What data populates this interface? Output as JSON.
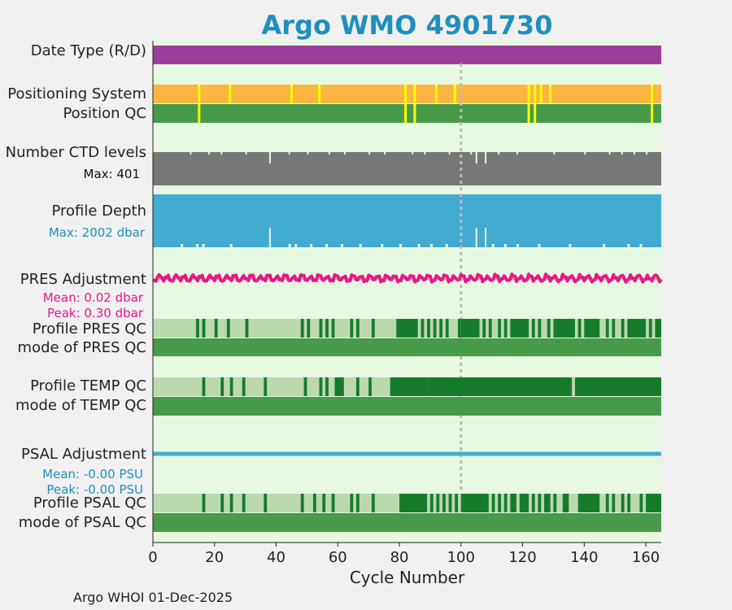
{
  "chart_data": {
    "type": "timeline-qc",
    "title": "Argo WMO 4901730",
    "xlabel": "Cycle Number",
    "xlim": [
      0,
      165
    ],
    "xticks": [
      0,
      20,
      40,
      60,
      80,
      100,
      120,
      140,
      160
    ],
    "reference_cycle": 100,
    "colors": {
      "plot_bg": "#e6f8e0",
      "date_type": "#9b3c98",
      "positioning": "#fbb540",
      "flag_yellow": "#ffff00",
      "qc_good": "#479a48",
      "qc_dark": "#167c2c",
      "qc_light": "#bcd9ae",
      "ctd": "#777777",
      "depth": "#43abd0",
      "pres_adj": "#e8168e",
      "pres_ref": "#ffcc00",
      "psal_adj": "#43abd0",
      "psal_text": "#1e8fbf",
      "ref_line": "#bbbbbb"
    },
    "rows": {
      "date_type": {
        "label": "Date Type (R/D)"
      },
      "positioning_system": {
        "label": "Positioning System",
        "flag_cycles": [
          15,
          25,
          45,
          54,
          82,
          85,
          92,
          98,
          122,
          124,
          126,
          129,
          162
        ]
      },
      "position_qc": {
        "label": "Position QC",
        "flag_cycles": [
          15,
          82,
          85,
          122,
          124,
          162
        ]
      },
      "ctd_levels": {
        "label": "Number CTD levels",
        "max_text": "Max: 401",
        "max": 401,
        "dip_cycles": [
          38,
          105,
          108
        ]
      },
      "profile_depth": {
        "label": "Profile Depth",
        "max_text": "Max: 2002 dbar",
        "max": 2002,
        "dip_cycles": [
          38,
          105,
          108
        ]
      },
      "pres_adjustment": {
        "label": "PRES Adjustment",
        "mean_text": "Mean: 0.02 dbar",
        "peak_text": "Peak: 0.30 dbar",
        "mean": 0.02,
        "peak": 0.3
      },
      "profile_pres_qc": {
        "label": "Profile PRES QC",
        "dark_segments": [
          [
            14,
            15
          ],
          [
            16,
            17
          ],
          [
            20,
            21
          ],
          [
            24,
            25
          ],
          [
            30,
            31
          ],
          [
            48,
            49
          ],
          [
            50,
            51
          ],
          [
            54,
            55
          ],
          [
            56,
            57
          ],
          [
            58,
            59
          ],
          [
            64,
            65
          ],
          [
            66,
            67
          ],
          [
            71,
            72
          ],
          [
            79,
            80
          ],
          [
            80,
            86
          ],
          [
            87,
            88
          ],
          [
            89,
            90
          ],
          [
            91,
            92
          ],
          [
            93,
            94
          ],
          [
            95,
            96
          ],
          [
            99,
            100
          ],
          [
            100,
            106
          ],
          [
            107,
            108
          ],
          [
            109,
            110
          ],
          [
            112,
            113
          ],
          [
            114,
            115
          ],
          [
            116,
            122
          ],
          [
            123,
            124
          ],
          [
            125,
            126
          ],
          [
            128,
            129
          ],
          [
            130,
            137
          ],
          [
            138,
            139
          ],
          [
            140,
            145
          ],
          [
            147,
            148
          ],
          [
            149,
            150
          ],
          [
            152,
            153
          ],
          [
            154,
            160
          ],
          [
            161,
            162
          ],
          [
            163,
            165
          ]
        ]
      },
      "mode_pres_qc": {
        "label": "mode of PRES QC"
      },
      "profile_temp_qc": {
        "label": "Profile TEMP QC",
        "dark_segments": [
          [
            16,
            17
          ],
          [
            22,
            23
          ],
          [
            25,
            26
          ],
          [
            29,
            30
          ],
          [
            36,
            37
          ],
          [
            49,
            50
          ],
          [
            54,
            55
          ],
          [
            56,
            57
          ],
          [
            59,
            62
          ],
          [
            66,
            67
          ],
          [
            70,
            71
          ],
          [
            77,
            89
          ],
          [
            89,
            90
          ],
          [
            90,
            136
          ],
          [
            137,
            165
          ]
        ]
      },
      "mode_temp_qc": {
        "label": "mode of TEMP QC"
      },
      "psal_adjustment": {
        "label": "PSAL Adjustment",
        "mean_text": "Mean: -0.00 PSU",
        "peak_text": "Peak: -0.00 PSU",
        "mean": -0.0,
        "peak": -0.0
      },
      "profile_psal_qc": {
        "label": "Profile PSAL QC",
        "dark_segments": [
          [
            16,
            17
          ],
          [
            22,
            23
          ],
          [
            25,
            26
          ],
          [
            29,
            30
          ],
          [
            36,
            37
          ],
          [
            48,
            49
          ],
          [
            52,
            53
          ],
          [
            55,
            56
          ],
          [
            58,
            59
          ],
          [
            64,
            65
          ],
          [
            66,
            67
          ],
          [
            71,
            72
          ],
          [
            80,
            89
          ],
          [
            90,
            91
          ],
          [
            92,
            93
          ],
          [
            94,
            95
          ],
          [
            96,
            97
          ],
          [
            98,
            99
          ],
          [
            100,
            109
          ],
          [
            110,
            111
          ],
          [
            112,
            113
          ],
          [
            114,
            115
          ],
          [
            116,
            118
          ],
          [
            119,
            122
          ],
          [
            123,
            124
          ],
          [
            125,
            126
          ],
          [
            127,
            129
          ],
          [
            130,
            131
          ],
          [
            133,
            135
          ],
          [
            138,
            145
          ],
          [
            147,
            148
          ],
          [
            149,
            150
          ],
          [
            152,
            153
          ],
          [
            154,
            155
          ],
          [
            158,
            159
          ],
          [
            160,
            165
          ]
        ]
      },
      "mode_psal_qc": {
        "label": "mode of PSAL QC"
      }
    },
    "footer": "Argo WHOI 01-Dec-2025"
  }
}
